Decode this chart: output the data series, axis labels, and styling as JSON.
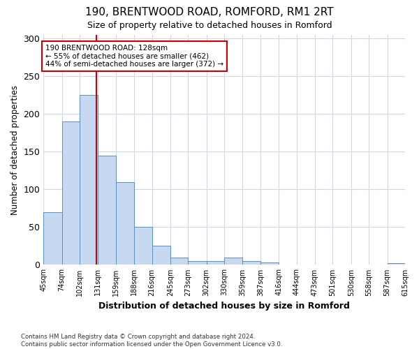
{
  "title": "190, BRENTWOOD ROAD, ROMFORD, RM1 2RT",
  "subtitle": "Size of property relative to detached houses in Romford",
  "xlabel": "Distribution of detached houses by size in Romford",
  "ylabel": "Number of detached properties",
  "bin_edges": [
    45,
    74,
    102,
    131,
    159,
    188,
    216,
    245,
    273,
    302,
    330,
    359,
    387,
    416,
    444,
    473,
    501,
    530,
    558,
    587,
    615
  ],
  "bin_labels": [
    "45sqm",
    "74sqm",
    "102sqm",
    "131sqm",
    "159sqm",
    "188sqm",
    "216sqm",
    "245sqm",
    "273sqm",
    "302sqm",
    "330sqm",
    "359sqm",
    "387sqm",
    "416sqm",
    "444sqm",
    "473sqm",
    "501sqm",
    "530sqm",
    "558sqm",
    "587sqm",
    "615sqm"
  ],
  "counts": [
    70,
    190,
    225,
    145,
    110,
    50,
    25,
    10,
    5,
    5,
    10,
    5,
    3,
    0,
    0,
    0,
    0,
    0,
    0,
    2
  ],
  "bar_color": "#c6d9f0",
  "bar_edge_color": "#5a8fc3",
  "vline_x": 128,
  "vline_color": "#cc0000",
  "annotation_line1": "190 BRENTWOOD ROAD: 128sqm",
  "annotation_line2": "← 55% of detached houses are smaller (462)",
  "annotation_line3": "44% of semi-detached houses are larger (372) →",
  "annotation_box_color": "#ffffff",
  "annotation_box_edge_color": "#cc0000",
  "ylim": [
    0,
    305
  ],
  "yticks": [
    0,
    50,
    100,
    150,
    200,
    250,
    300
  ],
  "footer_line1": "Contains HM Land Registry data © Crown copyright and database right 2024.",
  "footer_line2": "Contains public sector information licensed under the Open Government Licence v3.0.",
  "bg_color": "#ffffff",
  "grid_color": "#d0d8e8"
}
